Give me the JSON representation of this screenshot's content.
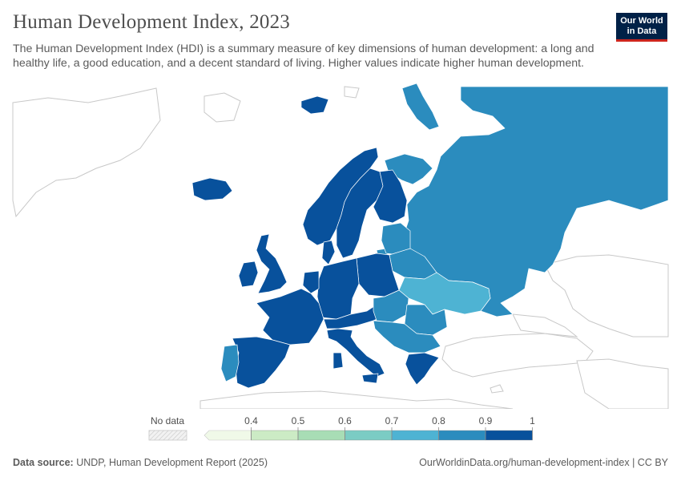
{
  "header": {
    "title": "Human Development Index, 2023",
    "subtitle": "The Human Development Index (HDI) is a summary measure of key dimensions of human development: a long and healthy life, a good education, and a decent standard of living. Higher values indicate higher human development.",
    "logo_line1": "Our World",
    "logo_line2": "in Data"
  },
  "colors": {
    "brand_navy": "#002147",
    "brand_red": "#ce261e",
    "band_0_9_1": "#08519c",
    "band_0_8_0_9": "#2b8cbe",
    "band_0_7_0_8": "#4eb3d3",
    "no_data_grey": "#e0e0e0"
  },
  "map": {
    "region": "Europe",
    "year": 2023,
    "regions": [
      {
        "name": "Russia",
        "hdi_band": "0.8-0.9"
      },
      {
        "name": "Norway",
        "hdi_band": "0.9-1"
      },
      {
        "name": "Sweden",
        "hdi_band": "0.9-1"
      },
      {
        "name": "Finland",
        "hdi_band": "0.9-1"
      },
      {
        "name": "Iceland",
        "hdi_band": "0.9-1"
      },
      {
        "name": "United Kingdom",
        "hdi_band": "0.9-1"
      },
      {
        "name": "Ireland",
        "hdi_band": "0.9-1"
      },
      {
        "name": "France",
        "hdi_band": "0.9-1"
      },
      {
        "name": "Spain",
        "hdi_band": "0.9-1"
      },
      {
        "name": "Portugal",
        "hdi_band": "0.8-0.9"
      },
      {
        "name": "Germany",
        "hdi_band": "0.9-1"
      },
      {
        "name": "Poland",
        "hdi_band": "0.9-1"
      },
      {
        "name": "Italy",
        "hdi_band": "0.9-1"
      },
      {
        "name": "Denmark",
        "hdi_band": "0.9-1"
      },
      {
        "name": "Baltic states",
        "hdi_band": "0.8-0.9"
      },
      {
        "name": "Belarus",
        "hdi_band": "0.8-0.9"
      },
      {
        "name": "Ukraine",
        "hdi_band": "0.7-0.8"
      },
      {
        "name": "Romania",
        "hdi_band": "0.8-0.9"
      },
      {
        "name": "Balkans",
        "hdi_band": "0.8-0.9"
      },
      {
        "name": "Greece",
        "hdi_band": "0.9-1"
      }
    ]
  },
  "legend": {
    "no_data_label": "No data",
    "ticks": [
      "0.4",
      "0.5",
      "0.6",
      "0.7",
      "0.8",
      "0.9",
      "1"
    ],
    "bins": [
      {
        "from": 0,
        "to": 0.4,
        "color": "#f0f9e8"
      },
      {
        "from": 0.4,
        "to": 0.5,
        "color": "#ccebc5"
      },
      {
        "from": 0.5,
        "to": 0.6,
        "color": "#a8ddb5"
      },
      {
        "from": 0.6,
        "to": 0.7,
        "color": "#7bccc4"
      },
      {
        "from": 0.7,
        "to": 0.8,
        "color": "#4eb3d3"
      },
      {
        "from": 0.8,
        "to": 0.9,
        "color": "#2b8cbe"
      },
      {
        "from": 0.9,
        "to": 1.0,
        "color": "#08519c"
      }
    ]
  },
  "footer": {
    "source_label": "Data source:",
    "source_text": "UNDP, Human Development Report (2025)",
    "url": "OurWorldinData.org/human-development-index",
    "separator": "|",
    "license": "CC BY"
  }
}
